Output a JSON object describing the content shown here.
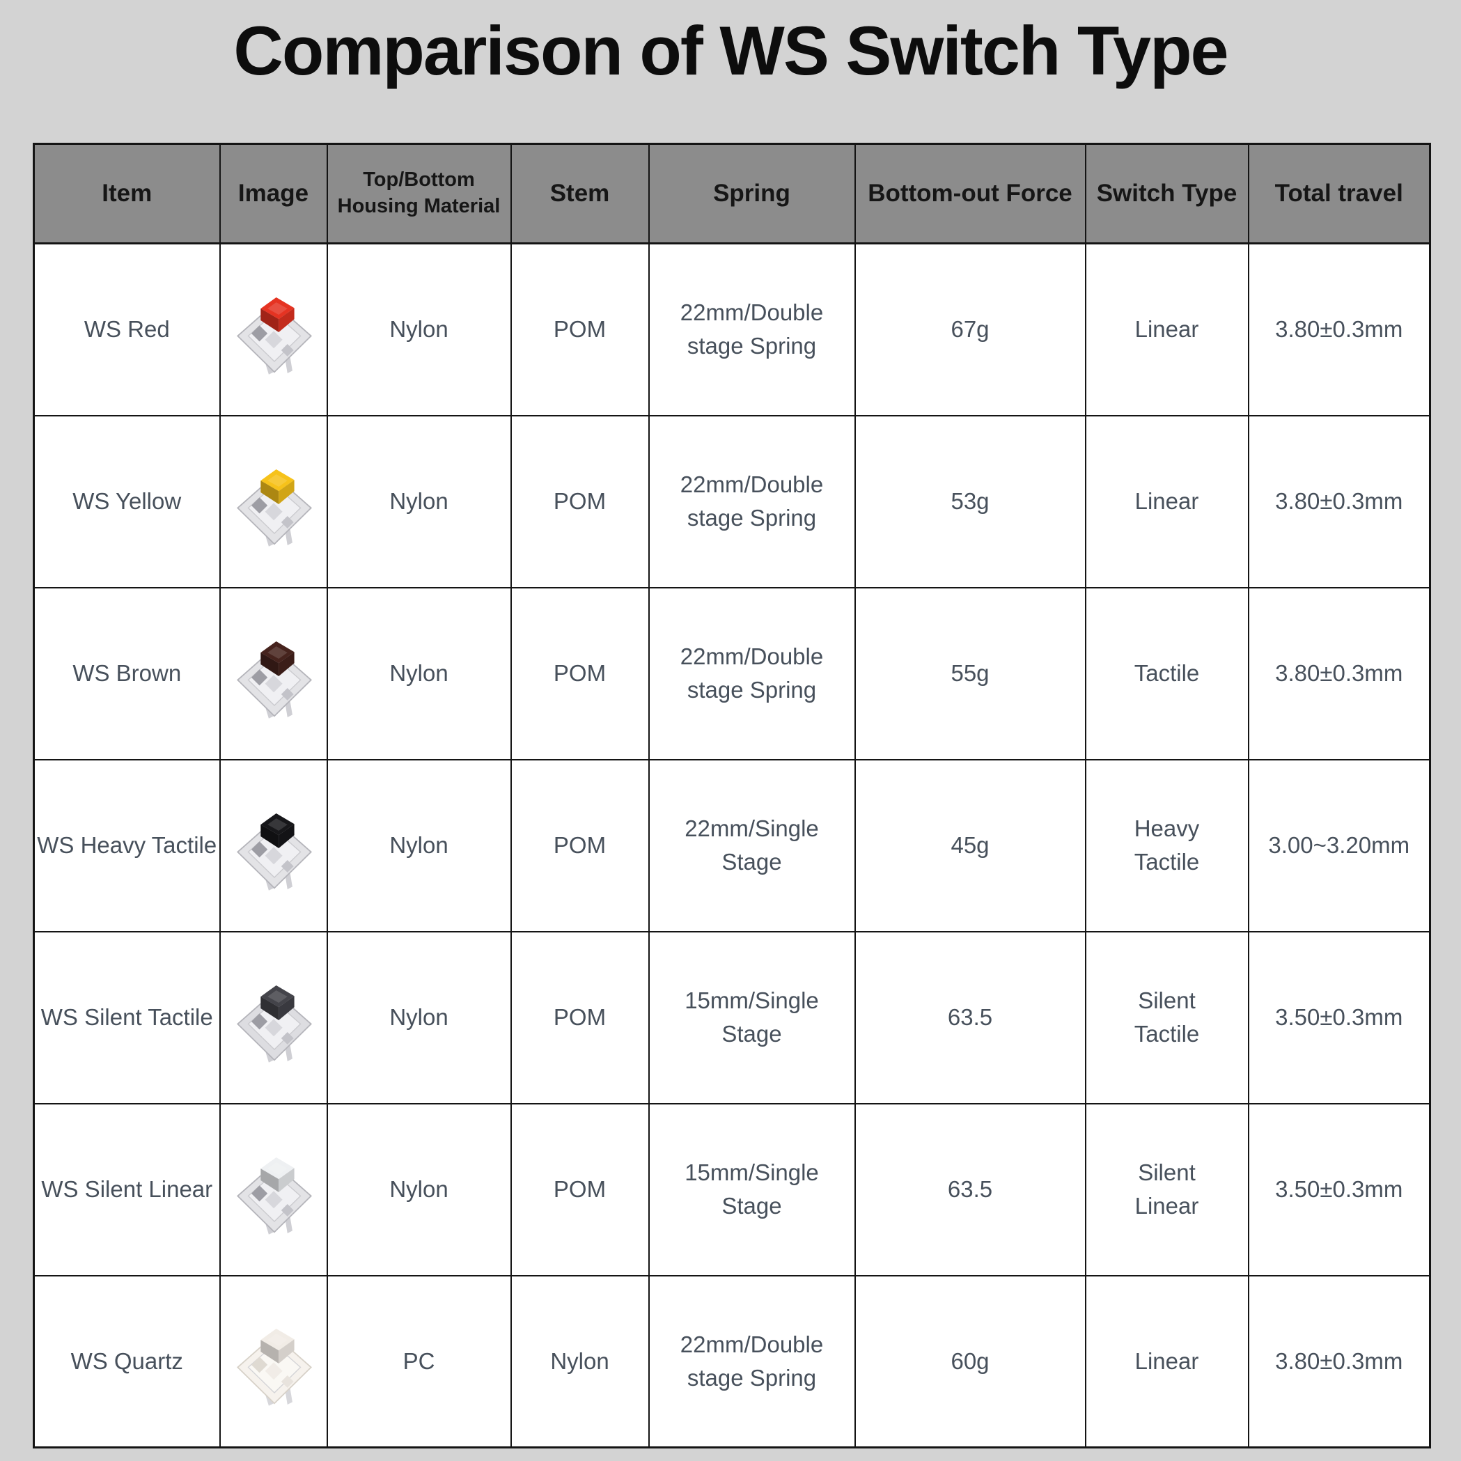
{
  "title": "Comparison of WS Switch Type",
  "colors": {
    "page_bg": "#d3d3d3",
    "header_bg": "#8c8c8c",
    "header_text": "#161616",
    "cell_text": "#47505b",
    "border": "#141414",
    "red_stem": "#e53322",
    "yellow_stem": "#f6c21a",
    "brown_stem": "#46231d",
    "black_stem": "#17171a",
    "silent_tactile_stem": "#44444a",
    "silent_linear_stem": "#eef0f2",
    "quartz_stem": "#efe8e1"
  },
  "table": {
    "columns": [
      {
        "key": "item",
        "label": "Item"
      },
      {
        "key": "image",
        "label": "Image"
      },
      {
        "key": "housing",
        "label": "Top/Bottom Housing Material"
      },
      {
        "key": "stem",
        "label": "Stem"
      },
      {
        "key": "spring",
        "label": "Spring"
      },
      {
        "key": "force",
        "label": "Bottom-out Force"
      },
      {
        "key": "type",
        "label": "Switch Type"
      },
      {
        "key": "travel",
        "label": "Total travel"
      }
    ],
    "rows": [
      {
        "item": "WS Red",
        "image": {
          "icon": "ws-red-switch-image",
          "stem_color": "#e53322",
          "housing_color": "#e3e3e6",
          "translucent": false
        },
        "housing": "Nylon",
        "stem": "POM",
        "spring": "22mm/Double stage Spring",
        "force": "67g",
        "type": "Linear",
        "travel": "3.80±0.3mm"
      },
      {
        "item": "WS Yellow",
        "image": {
          "icon": "ws-yellow-switch-image",
          "stem_color": "#f6c21a",
          "housing_color": "#e3e3e6",
          "translucent": false
        },
        "housing": "Nylon",
        "stem": "POM",
        "spring": "22mm/Double stage Spring",
        "force": "53g",
        "type": "Linear",
        "travel": "3.80±0.3mm"
      },
      {
        "item": "WS Brown",
        "image": {
          "icon": "ws-brown-switch-image",
          "stem_color": "#46231d",
          "housing_color": "#e3e3e6",
          "translucent": false
        },
        "housing": "Nylon",
        "stem": "POM",
        "spring": "22mm/Double stage Spring",
        "force": "55g",
        "type": "Tactile",
        "travel": "3.80±0.3mm"
      },
      {
        "item": "WS Heavy Tactile",
        "image": {
          "icon": "ws-heavy-tactile-switch-image",
          "stem_color": "#17171a",
          "housing_color": "#e3e3e6",
          "translucent": false
        },
        "housing": "Nylon",
        "stem": "POM",
        "spring": "22mm/Single Stage",
        "force": "45g",
        "type": "Heavy Tactile",
        "travel": "3.00~3.20mm"
      },
      {
        "item": "WS Silent Tactile",
        "image": {
          "icon": "ws-silent-tactile-switch-image",
          "stem_color": "#44444a",
          "housing_color": "#dddde1",
          "translucent": false
        },
        "housing": "Nylon",
        "stem": "POM",
        "spring": "15mm/Single Stage",
        "force": "63.5",
        "type": "Silent Tactile",
        "travel": "3.50±0.3mm"
      },
      {
        "item": "WS Silent Linear",
        "image": {
          "icon": "ws-silent-linear-switch-image",
          "stem_color": "#eef0f2",
          "housing_color": "#e3e3e6",
          "translucent": false
        },
        "housing": "Nylon",
        "stem": "POM",
        "spring": "15mm/Single Stage",
        "force": "63.5",
        "type": "Silent Linear",
        "travel": "3.50±0.3mm"
      },
      {
        "item": "WS Quartz",
        "image": {
          "icon": "ws-quartz-switch-image",
          "stem_color": "#efe8e1",
          "housing_color": "#f5f0ea",
          "translucent": true
        },
        "housing": "PC",
        "stem": "Nylon",
        "spring": "22mm/Double stage Spring",
        "force": "60g",
        "type": "Linear",
        "travel": "3.80±0.3mm"
      }
    ]
  }
}
